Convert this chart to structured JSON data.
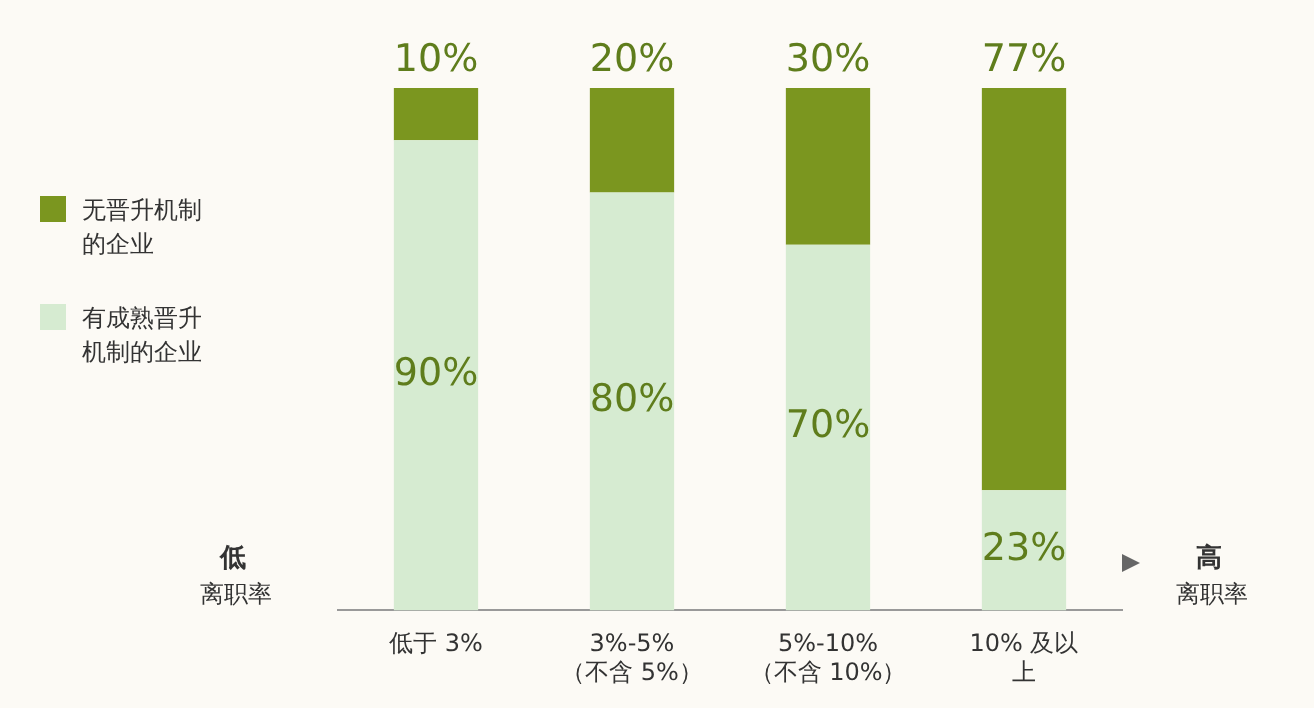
{
  "chart_data": {
    "type": "bar",
    "stacked": true,
    "categories": [
      "低于 3%",
      "3%-5%\n（不含 5%）",
      "5%-10%\n（不含 10%）",
      "10% 及以上"
    ],
    "series": [
      {
        "name": "有成熟晋升机制的企业",
        "color": "#d6ebd1",
        "values": [
          90,
          80,
          70,
          23
        ],
        "value_labels": [
          "90%",
          "80%",
          "70%",
          "23%"
        ]
      },
      {
        "name": "无晋升机制的企业",
        "color": "#7b961f",
        "values": [
          10,
          20,
          30,
          77
        ],
        "value_labels": [
          "10%",
          "20%",
          "30%",
          "77%"
        ]
      }
    ],
    "tick_labels": "x",
    "grid": false,
    "legend": "left",
    "annotations": [
      "低",
      "离职率",
      "高",
      "离职率"
    ]
  }
}
